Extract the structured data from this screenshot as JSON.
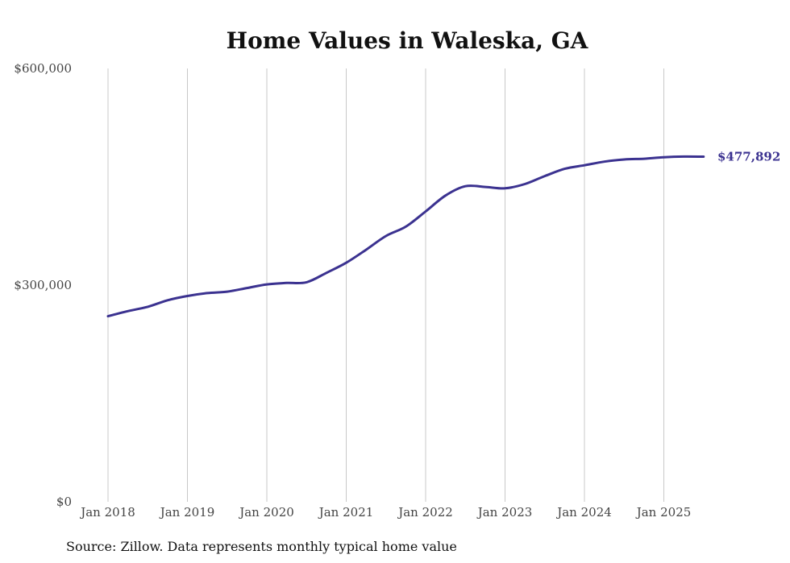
{
  "chart_data": {
    "type": "line",
    "title": "Home Values in Waleska, GA",
    "xlabel": "",
    "ylabel": "",
    "ylim": [
      0,
      600000
    ],
    "yticks": [
      0,
      300000,
      600000
    ],
    "ytick_labels": [
      "$0",
      "$300,000",
      "$600,000"
    ],
    "xlim": [
      "2018-01",
      "2025-08"
    ],
    "xticks": [
      "2018-01",
      "2019-01",
      "2020-01",
      "2021-01",
      "2022-01",
      "2023-01",
      "2024-01",
      "2025-01"
    ],
    "xtick_labels": [
      "Jan 2018",
      "Jan 2019",
      "Jan 2020",
      "Jan 2021",
      "Jan 2022",
      "Jan 2023",
      "Jan 2024",
      "Jan 2025"
    ],
    "grid": "vertical",
    "end_label": "$477,892",
    "source": "Source: Zillow. Data represents monthly typical home value",
    "colors": {
      "line": "#3b3290",
      "grid": "#c8c8c8"
    },
    "series": [
      {
        "x": [
          "2018-01",
          "2018-04",
          "2018-07",
          "2018-10",
          "2019-01",
          "2019-04",
          "2019-07",
          "2019-10",
          "2020-01",
          "2020-04",
          "2020-07",
          "2020-10",
          "2021-01",
          "2021-04",
          "2021-07",
          "2021-10",
          "2022-01",
          "2022-04",
          "2022-07",
          "2022-10",
          "2023-01",
          "2023-04",
          "2023-07",
          "2023-10",
          "2024-01",
          "2024-04",
          "2024-07",
          "2024-10",
          "2025-01",
          "2025-04",
          "2025-07"
        ],
        "values": [
          257000,
          264000,
          270000,
          279000,
          285000,
          289000,
          291000,
          296000,
          301000,
          303000,
          304000,
          317000,
          331000,
          349000,
          368000,
          381000,
          402000,
          424000,
          437000,
          436000,
          434000,
          440000,
          451000,
          461000,
          466000,
          471000,
          474000,
          475000,
          477000,
          478000,
          477892
        ]
      }
    ]
  }
}
